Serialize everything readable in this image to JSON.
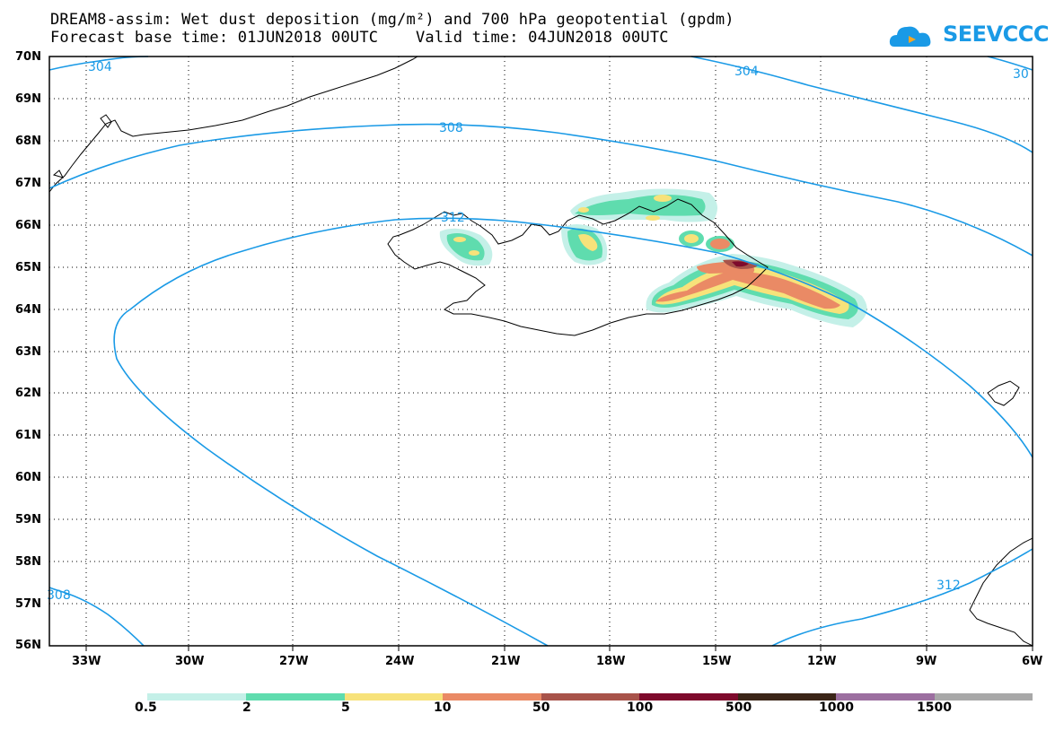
{
  "title_line1": "DREAM8-assim: Wet dust deposition (mg/m²) and 700 hPa geopotential (gpdm)",
  "title_line2": "Forecast base time: 01JUN2018 00UTC    Valid time: 04JUN2018 00UTC",
  "logo_text": "SEEVCCC",
  "lat_labels": [
    "70N",
    "69N",
    "68N",
    "67N",
    "66N",
    "65N",
    "64N",
    "63N",
    "62N",
    "61N",
    "60N",
    "59N",
    "58N",
    "57N",
    "56N"
  ],
  "lon_labels": [
    "33W",
    "30W",
    "27W",
    "24W",
    "21W",
    "18W",
    "15W",
    "12W",
    "9W",
    "6W"
  ],
  "contour_labels": [
    "304",
    "304",
    "30",
    "308",
    "312",
    "308",
    "312"
  ],
  "colorbar": {
    "labels": [
      "0.5",
      "2",
      "5",
      "10",
      "50",
      "100",
      "500",
      "1000",
      "1500"
    ],
    "colors": [
      "#c4f0e8",
      "#5fdcae",
      "#f7e27a",
      "#ea8a65",
      "#a8534a",
      "#7e0a2c",
      "#3b2518",
      "#9c6fa0",
      "#a8a8a8"
    ]
  },
  "contour_color": "#1a9ae6"
}
